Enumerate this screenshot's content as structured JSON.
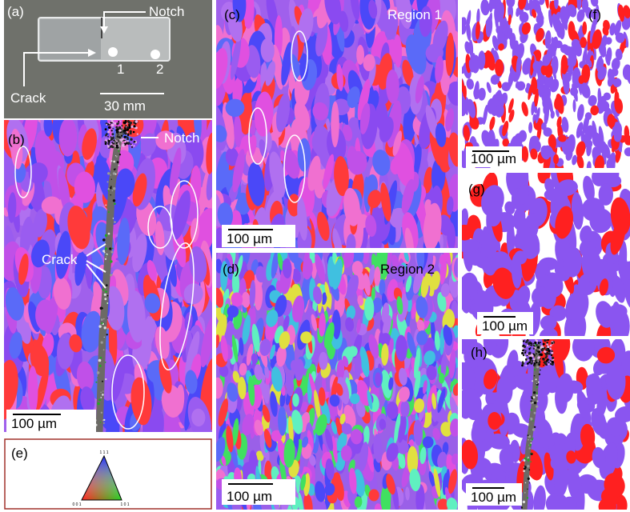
{
  "panels": {
    "a": {
      "label": "(a)",
      "notch": "Notch",
      "crack": "Crack",
      "hole_1": "1",
      "hole_2": "2",
      "scale_bar": "30 mm"
    },
    "b": {
      "label": "(b)",
      "notch": "Notch",
      "crack": "Crack",
      "scale_bar": "100 µm"
    },
    "c": {
      "label": "(c)",
      "region": "Region 1",
      "scale_bar": "100 µm"
    },
    "d": {
      "label": "(d)",
      "region": "Region 2",
      "scale_bar": "100 µm"
    },
    "e": {
      "label": "(e)",
      "corner_top": "1 1 1",
      "corner_left": "0 0 1",
      "corner_right": "1 0 1"
    },
    "f": {
      "label": "(f)",
      "scale_bar": "100 µm"
    },
    "g": {
      "label": "(g)",
      "scale_bar": "100 µm"
    },
    "h": {
      "label": "(h)",
      "scale_bar": "100 µm"
    }
  }
}
